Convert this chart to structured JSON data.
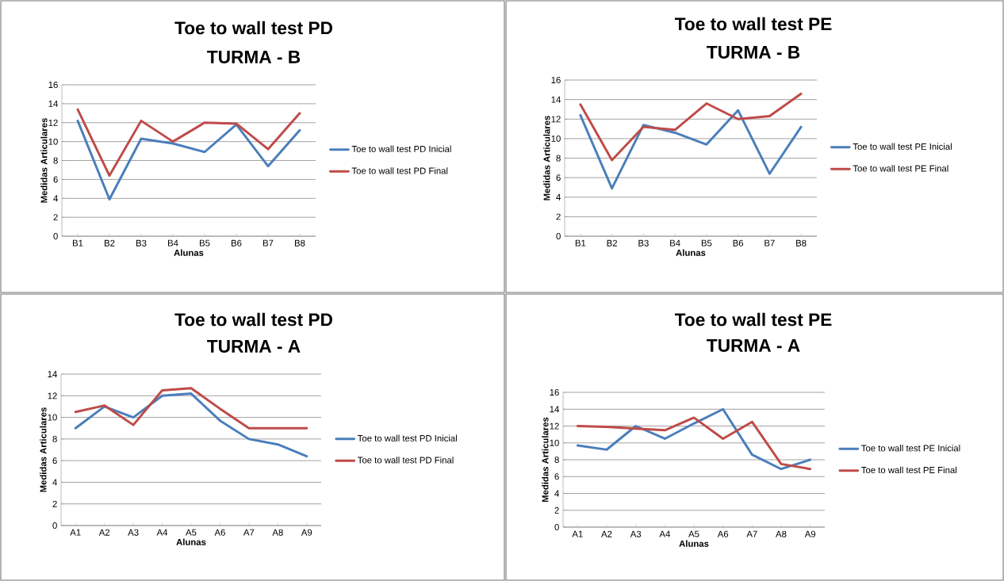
{
  "chart_data": [
    {
      "type": "line",
      "title": "Toe to wall test PD",
      "subtitle": "TURMA - B",
      "xlabel": "Alunas",
      "ylabel": "Medidas Articulares",
      "categories": [
        "B1",
        "B2",
        "B3",
        "B4",
        "B5",
        "B6",
        "B7",
        "B8"
      ],
      "series": [
        {
          "name": "Toe to wall test PD Inicial",
          "color": "#4a7ebb",
          "values": [
            12.2,
            3.9,
            10.3,
            9.8,
            8.9,
            11.8,
            7.4,
            11.2
          ]
        },
        {
          "name": "Toe to wall test PD Final",
          "color": "#be4b48",
          "values": [
            13.4,
            6.4,
            12.2,
            10.0,
            12.0,
            11.9,
            9.2,
            13.0
          ]
        }
      ],
      "ylim": [
        0,
        16
      ],
      "yticks": [
        0,
        2,
        4,
        6,
        8,
        10,
        12,
        14,
        16
      ],
      "grid": "y",
      "legend": "right"
    },
    {
      "type": "line",
      "title": "Toe to wall test PE",
      "subtitle": "TURMA - B",
      "xlabel": "Alunas",
      "ylabel": "Medidas Articulares",
      "categories": [
        "B1",
        "B2",
        "B3",
        "B4",
        "B5",
        "B6",
        "B7",
        "B8"
      ],
      "series": [
        {
          "name": "Toe to wall test PE Inicial",
          "color": "#4a7ebb",
          "values": [
            12.4,
            4.9,
            11.4,
            10.6,
            9.4,
            12.9,
            6.4,
            11.2
          ]
        },
        {
          "name": "Toe to wall test PE Final",
          "color": "#be4b48",
          "values": [
            13.5,
            7.8,
            11.2,
            10.9,
            13.6,
            12.0,
            12.3,
            14.6
          ]
        }
      ],
      "ylim": [
        0,
        16
      ],
      "yticks": [
        0,
        2,
        4,
        6,
        8,
        10,
        12,
        14,
        16
      ],
      "grid": "y",
      "legend": "right"
    },
    {
      "type": "line",
      "title": "Toe to wall test PD",
      "subtitle": "TURMA - A",
      "xlabel": "Alunas",
      "ylabel": "Medidas Articulares",
      "categories": [
        "A1",
        "A2",
        "A3",
        "A4",
        "A5",
        "A6",
        "A7",
        "A8",
        "A9"
      ],
      "series": [
        {
          "name": "Toe to wall test PD Inicial",
          "color": "#4a7ebb",
          "values": [
            9.0,
            11.0,
            10.0,
            12.0,
            12.2,
            9.7,
            8.0,
            7.5,
            6.4
          ]
        },
        {
          "name": "Toe to wall test PD Final",
          "color": "#be4b48",
          "values": [
            10.5,
            11.1,
            9.3,
            12.5,
            12.7,
            10.8,
            9.0,
            9.0,
            9.0
          ]
        }
      ],
      "ylim": [
        0,
        14
      ],
      "yticks": [
        0,
        2,
        4,
        6,
        8,
        10,
        12,
        14
      ],
      "grid": "y",
      "legend": "right"
    },
    {
      "type": "line",
      "title": "Toe to wall test PE",
      "subtitle": "TURMA - A",
      "xlabel": "Alunas",
      "ylabel": "Medidas Articulares",
      "categories": [
        "A1",
        "A2",
        "A3",
        "A4",
        "A5",
        "A6",
        "A7",
        "A8",
        "A9"
      ],
      "series": [
        {
          "name": "Toe to wall test PE Inicial",
          "color": "#4a7ebb",
          "values": [
            9.7,
            9.2,
            12.0,
            10.5,
            12.3,
            14.0,
            8.6,
            6.9,
            8.0
          ]
        },
        {
          "name": "Toe to wall test PE Final",
          "color": "#be4b48",
          "values": [
            12.0,
            11.9,
            11.7,
            11.5,
            13.0,
            10.5,
            12.5,
            7.5,
            6.9
          ]
        }
      ],
      "ylim": [
        0,
        16
      ],
      "yticks": [
        0,
        2,
        4,
        6,
        8,
        10,
        12,
        14,
        16
      ],
      "grid": "y",
      "legend": "right"
    }
  ]
}
